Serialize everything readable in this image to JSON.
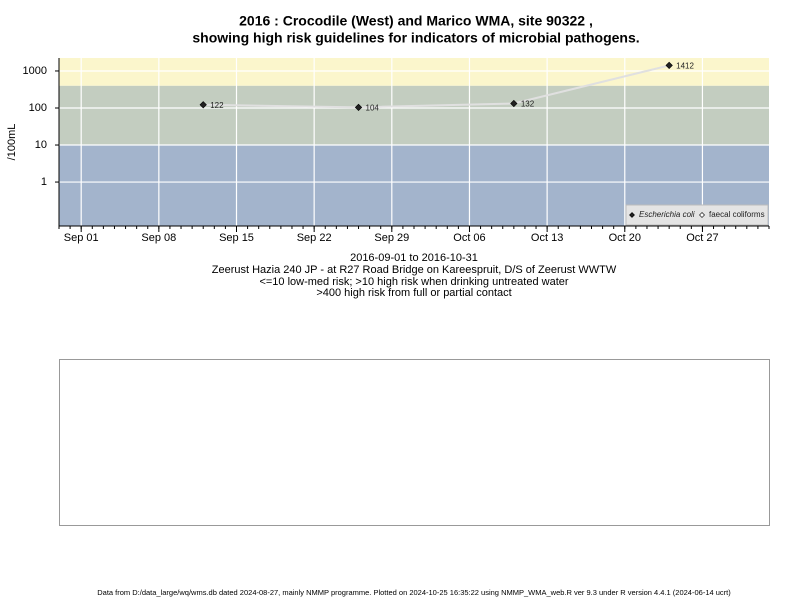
{
  "chart_data": {
    "type": "line",
    "title": "2016 : Crocodile (West) and Marico WMA, site 90322 ,",
    "subtitle": "showing high risk guidelines for indicators of microbial pathogens.",
    "ylabel": "/100mL",
    "log_y": true,
    "ylim": [
      0.065,
      2240
    ],
    "yticks": [
      1,
      10,
      100,
      1000
    ],
    "xlim": [
      "2016-08-30",
      "2016-11-02"
    ],
    "xticks": [
      {
        "value": "2016-09-01",
        "label": "Sep 01"
      },
      {
        "value": "2016-09-08",
        "label": "Sep 08"
      },
      {
        "value": "2016-09-15",
        "label": "Sep 15"
      },
      {
        "value": "2016-09-22",
        "label": "Sep 22"
      },
      {
        "value": "2016-09-29",
        "label": "Sep 29"
      },
      {
        "value": "2016-10-06",
        "label": "Oct 06"
      },
      {
        "value": "2016-10-13",
        "label": "Oct 13"
      },
      {
        "value": "2016-10-20",
        "label": "Oct 20"
      },
      {
        "value": "2016-10-27",
        "label": "Oct 27"
      }
    ],
    "grid": true,
    "bands": [
      {
        "from": 0.065,
        "to": 10,
        "color": "#a3b4cc"
      },
      {
        "from": 10,
        "to": 400,
        "color": "#c3cdc0"
      },
      {
        "from": 400,
        "to": 2240,
        "color": "#fbf6cc"
      }
    ],
    "x": [
      "2016-09-12",
      "2016-09-26",
      "2016-10-10",
      "2016-10-24"
    ],
    "series": [
      {
        "name": "Escherichia coli",
        "color": "#222222",
        "line_color": "#e0e0e0",
        "values": [
          122,
          104,
          132,
          1412
        ]
      },
      {
        "name": "faecal coliforms",
        "color": "#ffffff",
        "line_color": "#e0e0e0",
        "values": [
          null,
          null,
          null,
          null
        ]
      }
    ],
    "legend": "lower right",
    "captions": [
      "2016-09-01 to 2016-10-31",
      "Zeerust Hazia 240 JP - at R27 Road Bridge on Kareespruit, D/S of Zeerust WWTW",
      "<=10 low-med risk; >10 high risk when drinking untreated water",
      ">400 high risk from full or partial contact"
    ],
    "footer": "Data from D:/data_large/wq/wms.db dated 2024-08-27, mainly NMMP programme. Plotted on 2024-10-25 16:35:22 using NMMP_WMA_web.R ver 9.3 under R version 4.4.1 (2024-06-14 ucrt)"
  }
}
